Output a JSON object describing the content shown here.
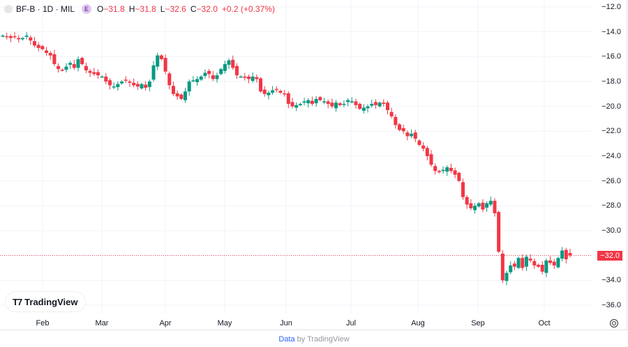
{
  "header": {
    "symbol": "BF-B · 1D · MIL",
    "badge": "E",
    "open_label": "O",
    "open": "−31.8",
    "high_label": "H",
    "high": "−31.8",
    "low_label": "L",
    "low": "−32.6",
    "close_label": "C",
    "close": "−32.0",
    "change": "+0.2 (+0.37%)"
  },
  "price_axis": {
    "ticks": [
      "−12.0",
      "−14.0",
      "−16.0",
      "−18.0",
      "−20.0",
      "−22.0",
      "−24.0",
      "−26.0",
      "−28.0",
      "−30.0",
      "−32.0",
      "−34.0",
      "−36.0"
    ],
    "last_price": "−32.0"
  },
  "time_axis": {
    "ticks": [
      "Feb",
      "Mar",
      "Apr",
      "May",
      "Jun",
      "Jul",
      "Aug",
      "Sep",
      "Oct"
    ]
  },
  "logo": "TradingView",
  "footer": {
    "link": "Data",
    "rest": " by TradingView"
  },
  "colors": {
    "up": "#089981",
    "down": "#f23645",
    "grid": "#f0f3fa",
    "last_line": "#f23645"
  },
  "chart_data": {
    "type": "candlestick",
    "title": "BF-B · 1D · MIL",
    "xlabel": "",
    "ylabel": "",
    "ylim": [
      -36.5,
      -11.5
    ],
    "grid": true,
    "x_ticks": [
      "Feb",
      "Mar",
      "Apr",
      "May",
      "Jun",
      "Jul",
      "Aug",
      "Sep",
      "Oct"
    ],
    "y_ticks": [
      -12,
      -14,
      -16,
      -18,
      -20,
      -22,
      -24,
      -26,
      -28,
      -30,
      -32,
      -34,
      -36
    ],
    "last": {
      "open": -31.8,
      "high": -31.8,
      "low": -32.6,
      "close": -32.0,
      "change": 0.2,
      "change_pct": 0.37
    },
    "closes": [
      -14.3,
      -14.4,
      -14.5,
      -14.4,
      -14.6,
      -14.5,
      -14.3,
      -14.7,
      -15.1,
      -15.3,
      -15.4,
      -15.7,
      -15.9,
      -16.6,
      -17.0,
      -17.1,
      -16.8,
      -16.5,
      -16.9,
      -16.2,
      -16.6,
      -17.1,
      -17.3,
      -17.4,
      -17.5,
      -17.6,
      -18.0,
      -18.3,
      -18.4,
      -18.2,
      -18.0,
      -17.9,
      -18.1,
      -18.3,
      -18.4,
      -18.2,
      -18.5,
      -18.0,
      -16.7,
      -15.9,
      -16.2,
      -17.2,
      -18.3,
      -19.0,
      -19.2,
      -19.4,
      -18.8,
      -18.0,
      -17.9,
      -17.8,
      -17.6,
      -17.3,
      -17.4,
      -17.8,
      -17.5,
      -17.0,
      -16.6,
      -16.3,
      -16.9,
      -17.5,
      -17.6,
      -17.7,
      -17.8,
      -17.6,
      -17.8,
      -18.8,
      -19.0,
      -18.9,
      -18.7,
      -18.6,
      -18.9,
      -19.0,
      -19.8,
      -20.0,
      -19.9,
      -19.8,
      -19.6,
      -19.5,
      -19.8,
      -19.4,
      -19.5,
      -19.6,
      -19.8,
      -20.0,
      -19.7,
      -19.9,
      -19.8,
      -19.5,
      -19.6,
      -19.9,
      -20.2,
      -20.1,
      -20.0,
      -19.8,
      -19.9,
      -19.7,
      -19.8,
      -20.3,
      -20.8,
      -21.5,
      -21.9,
      -22.0,
      -22.4,
      -22.2,
      -22.6,
      -23.1,
      -23.4,
      -24.0,
      -24.7,
      -25.2,
      -25.3,
      -25.1,
      -24.9,
      -25.2,
      -25.5,
      -26.0,
      -27.3,
      -27.9,
      -28.2,
      -28.0,
      -27.8,
      -28.3,
      -27.8,
      -27.6,
      -28.6,
      -31.7,
      -34.0,
      -33.4,
      -32.8,
      -32.9,
      -32.2,
      -33.0,
      -32.1,
      -32.4,
      -32.8,
      -32.9,
      -33.3,
      -32.4,
      -32.6,
      -32.8,
      -32.2,
      -31.6,
      -32.3,
      -32.0
    ]
  }
}
